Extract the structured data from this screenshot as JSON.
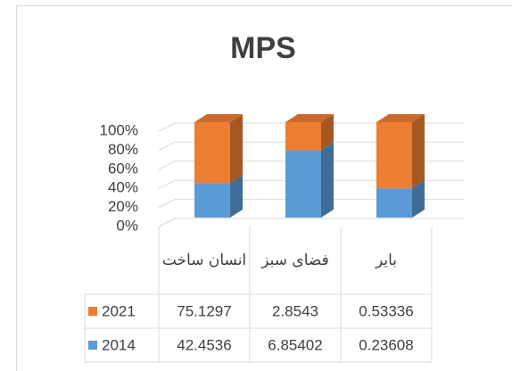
{
  "chart_data": {
    "type": "bar",
    "stacked": "percent",
    "title": "MPS",
    "categories": [
      "انسان ساخت",
      "فضای سبز",
      "بایر"
    ],
    "series": [
      {
        "name": "2021",
        "color": "#ed7d31",
        "values": [
          75.1297,
          2.8543,
          0.53336
        ]
      },
      {
        "name": "2014",
        "color": "#5b9bd5",
        "values": [
          42.4536,
          6.85402,
          0.23608
        ]
      }
    ],
    "ylim": [
      0,
      100
    ],
    "yticks": [
      {
        "value": 0,
        "label": "0%"
      },
      {
        "value": 20,
        "label": "20%"
      },
      {
        "value": 40,
        "label": "40%"
      },
      {
        "value": 60,
        "label": "60%"
      },
      {
        "value": 80,
        "label": "80%"
      },
      {
        "value": 100,
        "label": "100%"
      }
    ],
    "grid": true,
    "data_table": true
  }
}
